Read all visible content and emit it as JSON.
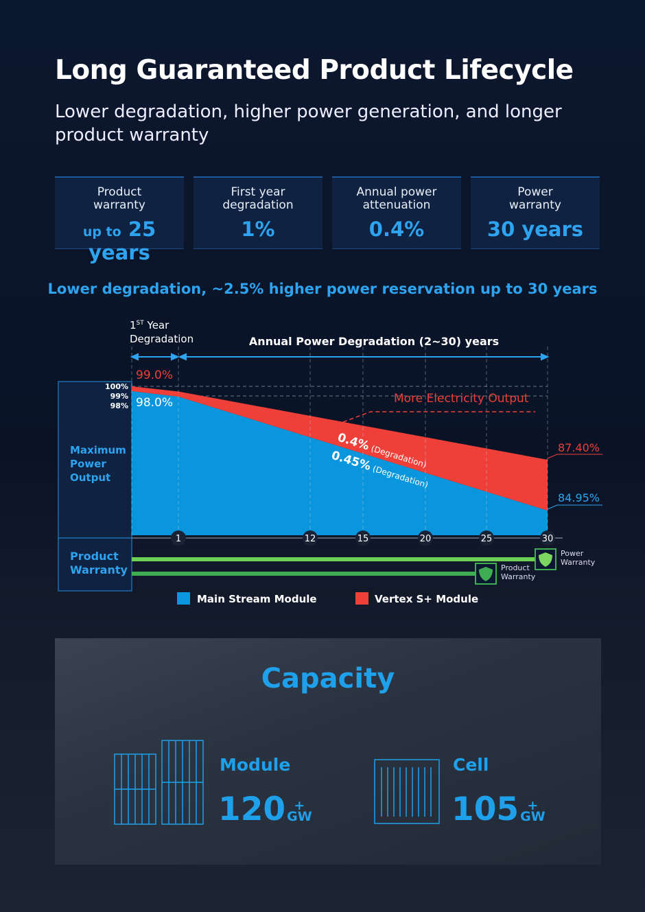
{
  "header": {
    "title": "Long Guaranteed Product Lifecycle",
    "subtitle": "Lower degradation, higher power generation, and longer product warranty"
  },
  "stats": [
    {
      "label": "Product warranty",
      "prefix": "up to",
      "value": "25 years"
    },
    {
      "label": "First year degradation",
      "value": "1%"
    },
    {
      "label": "Annual power attenuation",
      "value": "0.4%"
    },
    {
      "label": "Power warranty",
      "value": "30 years"
    }
  ],
  "headline": "Lower degradation, ~2.5% higher power reservation up to 30 years",
  "chart_data": {
    "type": "area",
    "first_year_label_sup": "ST",
    "first_year_label_pre": "1",
    "first_year_label_post": " Year",
    "first_year_label_2": "Degradation",
    "annual_label": "Annual Power Degradation (2~30) years",
    "y_axis_label": "Maximum Power Output",
    "y_ticks": [
      "100%",
      "99%",
      "98%"
    ],
    "x_ticks": [
      1,
      12,
      15,
      20,
      25,
      30
    ],
    "series": [
      {
        "name": "Main Stream Module",
        "color": "#0a96dc",
        "x": [
          0,
          1,
          30
        ],
        "y": [
          100,
          98.0,
          84.95
        ],
        "start_label": "98.0%",
        "end_label": "84.95%",
        "rate_label": "0.45%",
        "rate_note": "(Degradation)"
      },
      {
        "name": "Vertex S+ Module",
        "color": "#ee3f38",
        "x": [
          0,
          1,
          30
        ],
        "y": [
          100,
          99.0,
          87.4
        ],
        "start_label": "99.0%",
        "end_label": "87.40%",
        "rate_label": "0.4%",
        "rate_note": "(Degradation)"
      }
    ],
    "annotation": "More Electricity Output",
    "warranty_row_label": "Product Warranty",
    "warranties": [
      {
        "label_1": "Power",
        "label_2": "Warranty",
        "years": 30,
        "icon": "shield-icon"
      },
      {
        "label_1": "Product",
        "label_2": "Warranty",
        "years": 25,
        "icon": "shield-icon"
      }
    ],
    "grid": true,
    "legend": "bottom"
  },
  "capacity": {
    "title": "Capacity",
    "items": [
      {
        "label": "Module",
        "value": "120",
        "sup": "+",
        "unit": "GW",
        "icon": "solar-module-icon"
      },
      {
        "label": "Cell",
        "value": "105",
        "sup": "+",
        "unit": "GW",
        "icon": "solar-cell-icon"
      }
    ]
  },
  "colors": {
    "accent": "#2ea3ef",
    "red": "#ee3f38",
    "green": "#5cc04a",
    "background": "#0b1428"
  }
}
